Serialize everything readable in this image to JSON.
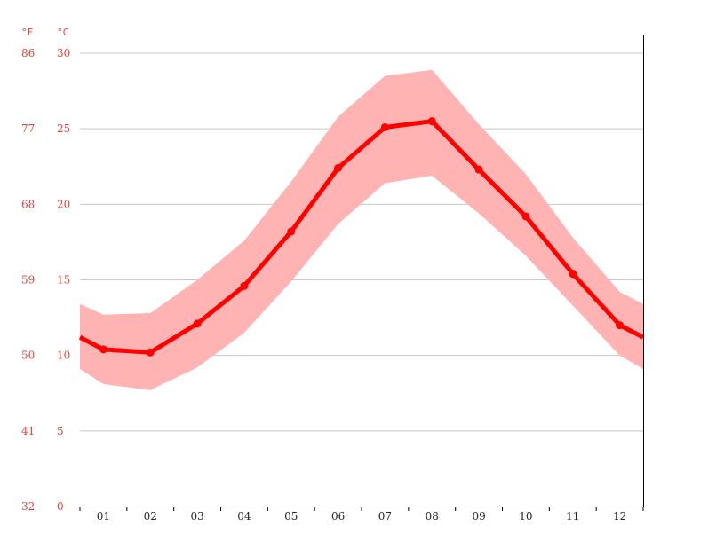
{
  "chart_data": {
    "type": "line",
    "x": [
      "01",
      "02",
      "03",
      "04",
      "05",
      "06",
      "07",
      "08",
      "09",
      "10",
      "11",
      "12"
    ],
    "left_axis_unit": "°F",
    "right_axis_unit": "°C",
    "yticks_c": [
      "0",
      "5",
      "10",
      "15",
      "20",
      "25",
      "30"
    ],
    "yticks_f": [
      "32",
      "41",
      "50",
      "59",
      "68",
      "77",
      "86"
    ],
    "ylim": [
      0,
      30
    ],
    "grid": true,
    "series": [
      {
        "role": "average",
        "values": [
          10.4,
          10.2,
          12.1,
          14.6,
          18.2,
          22.4,
          25.1,
          25.5,
          22.3,
          19.2,
          15.4,
          12.0
        ],
        "edge_start": 11.2,
        "edge_end": 11.2,
        "color": "#ff0000"
      },
      {
        "role": "band_upper",
        "values": [
          12.7,
          12.8,
          15.0,
          17.6,
          21.5,
          25.8,
          28.5,
          28.9,
          25.3,
          22.0,
          17.8,
          14.2
        ],
        "edge_start": 13.4,
        "edge_end": 13.4,
        "color": "#ffb3b3"
      },
      {
        "role": "band_lower",
        "values": [
          8.1,
          7.7,
          9.2,
          11.5,
          14.9,
          18.7,
          21.4,
          21.9,
          19.4,
          16.6,
          13.3,
          10.0
        ],
        "edge_start": 9.1,
        "edge_end": 9.1,
        "color": "#ffb3b3"
      }
    ]
  }
}
